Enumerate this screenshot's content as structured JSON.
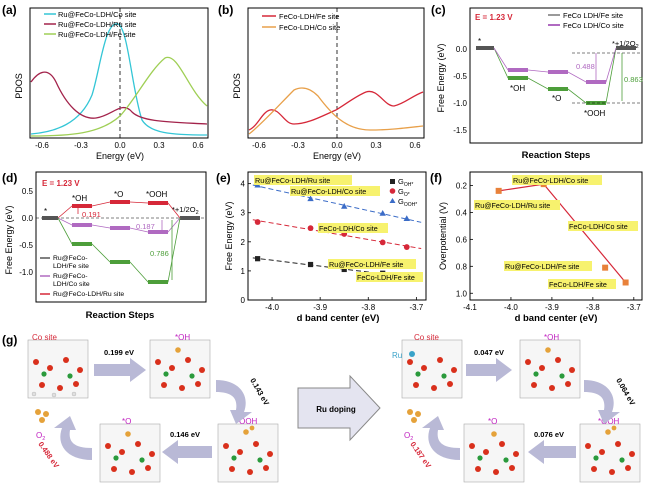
{
  "figure": {
    "panel_labels": [
      "(a)",
      "(b)",
      "(c)",
      "(d)",
      "(e)",
      "(f)",
      "(g)"
    ],
    "colors": {
      "green": "#4d9e3a",
      "purple": "#b06ac1",
      "red": "#d62839",
      "cyan": "#34c6d6",
      "darkred": "#a3234b",
      "lime": "#9fcf55",
      "orange": "#e8a04a",
      "blue": "#3b6cc7",
      "navy": "#2f3e8f",
      "yellow": "#f7f26e"
    }
  },
  "panel_a": {
    "legend": [
      "Ru@FeCo-LDH/Co site",
      "Ru@FeCo-LDH/Ru site",
      "Ru@FeCo-LDH/Fe site"
    ],
    "ylabel": "PDOS",
    "xlabel": "Energy (eV)",
    "xticks": [
      "-0.6",
      "-0.3",
      "0.0",
      "0.3",
      "0.6"
    ]
  },
  "panel_b": {
    "legend": [
      "FeCo-LDH/Fe site",
      "FeCo-LDH/Co site"
    ],
    "ylabel": "PDOS",
    "xlabel": "Energy (eV)",
    "xticks": [
      "-0.6",
      "-0.3",
      "0.0",
      "0.3",
      "0.6"
    ]
  },
  "panel_c": {
    "potential": "E = 1.23 V",
    "legend": [
      "FeCo LDH/Fe site",
      "FeCo LDH/Co site"
    ],
    "ylabel": "Free Energy (eV)",
    "xlabel": "Reaction Steps",
    "yticks": [
      "0.0",
      "-0.5",
      "-1.0",
      "-1.5"
    ],
    "labels": {
      "star": "*",
      "oh": "*OH",
      "o": "*O",
      "ooh": "*OOH",
      "o2": "*+1/2O",
      "o2_sub": "2",
      "gap1": "0.488",
      "gap2": "0.863"
    }
  },
  "panel_d": {
    "potential": "E = 1.23 V",
    "ylabel": "Free Energy (eV)",
    "xlabel": "Reaction Steps",
    "yticks": [
      "0.5",
      "0.0",
      "-0.5",
      "-1.0"
    ],
    "labels": {
      "star": "*",
      "oh": "*OH",
      "o": "*O",
      "ooh": "*OOH",
      "o2": "*+1/2O",
      "o2_sub": "2",
      "gap1": "0.191",
      "gap2": "0.187",
      "gap3": "0.786"
    },
    "legend": [
      [
        "Ru@FeCo-",
        "LDH/Fe site"
      ],
      [
        "Ru@FeCo-",
        "LDH/Co site"
      ],
      [
        "Ru@FeCo-LDH/Ru site"
      ]
    ]
  },
  "panel_e": {
    "ylabel": "Free Energy (eV)",
    "xlabel": "d band center (eV)",
    "xlabel_italic": "d",
    "xticks": [
      "-4.0",
      "-3.9",
      "-3.8",
      "-3.7"
    ],
    "yticks": [
      "4",
      "3",
      "2",
      "1",
      "0"
    ],
    "legend": [
      {
        "G": "G",
        "sub": "OH*"
      },
      {
        "G": "G",
        "sub": "O*"
      },
      {
        "G": "G",
        "sub": "OOH*"
      }
    ],
    "site_labels": [
      "Ru@FeCo-LDH/Ru site",
      "Ru@FeCo-LDH/Co site",
      "FeCo-LDH/Co site",
      "Ru@FeCo-LDH/Fe site",
      "FeCo-LDH/Fe site"
    ]
  },
  "panel_f": {
    "ylabel": "Overpotential (V)",
    "xlabel": "d band center (eV)",
    "xlabel_italic": "d",
    "xticks": [
      "-4.1",
      "-4.0",
      "-3.9",
      "-3.8",
      "-3.7"
    ],
    "yticks": [
      "0.2",
      "0.4",
      "0.6",
      "0.8",
      "1.0"
    ],
    "site_labels": [
      "Ru@FeCo-LDH/Co site",
      "Ru@FeCo-LDH/Ru site",
      "FeCo-LDH/Co site",
      "Ru@FeCo-LDH/Fe site",
      "FeCo-LDH/Fe site"
    ]
  },
  "chart_data": [
    {
      "panel": "(e)",
      "type": "scatter",
      "xlabel": "d band center (eV)",
      "ylabel": "Free Energy (eV)",
      "xlim": [
        -4.05,
        -3.68
      ],
      "ylim": [
        0,
        4.4
      ],
      "series": [
        {
          "name": "G_OH*",
          "x": [
            -4.03,
            -3.92,
            -3.85,
            -3.77,
            -3.72
          ],
          "y": [
            1.42,
            1.22,
            1.05,
            0.92,
            0.78
          ]
        },
        {
          "name": "G_O*",
          "x": [
            -4.03,
            -3.92,
            -3.85,
            -3.77,
            -3.72
          ],
          "y": [
            2.68,
            2.47,
            2.27,
            1.98,
            1.82
          ]
        },
        {
          "name": "G_OOH*",
          "x": [
            -4.03,
            -3.92,
            -3.85,
            -3.77,
            -3.72
          ],
          "y": [
            3.95,
            3.48,
            3.22,
            2.98,
            2.8
          ]
        }
      ]
    },
    {
      "panel": "(f)",
      "type": "scatter",
      "xlabel": "d band center (eV)",
      "ylabel": "Overpotential (V)",
      "xlim": [
        -4.1,
        -3.68
      ],
      "ylim": [
        1.05,
        0.1
      ],
      "x": [
        -4.03,
        -3.92,
        -3.85,
        -3.77,
        -3.72
      ],
      "y": [
        0.24,
        0.19,
        0.49,
        0.81,
        0.92
      ]
    }
  ],
  "panel_g": {
    "left": {
      "site": "Co site",
      "oh": "*OH",
      "o": "*O",
      "ooh": "*OOH",
      "o2": "O",
      "o2_sub": "2",
      "e1": "0.199 eV",
      "e2": "0.143 eV",
      "e3": "0.146 eV",
      "e4": "0.488 eV"
    },
    "middle": "Ru doping",
    "right": {
      "site": "Co site",
      "ru": "Ru",
      "oh": "*OH",
      "o": "*O",
      "ooh": "*OOH",
      "o2": "O",
      "o2_sub": "2",
      "e1": "0.047 eV",
      "e2": "0.064 eV",
      "e3": "0.076 eV",
      "e4": "0.187 eV"
    }
  }
}
